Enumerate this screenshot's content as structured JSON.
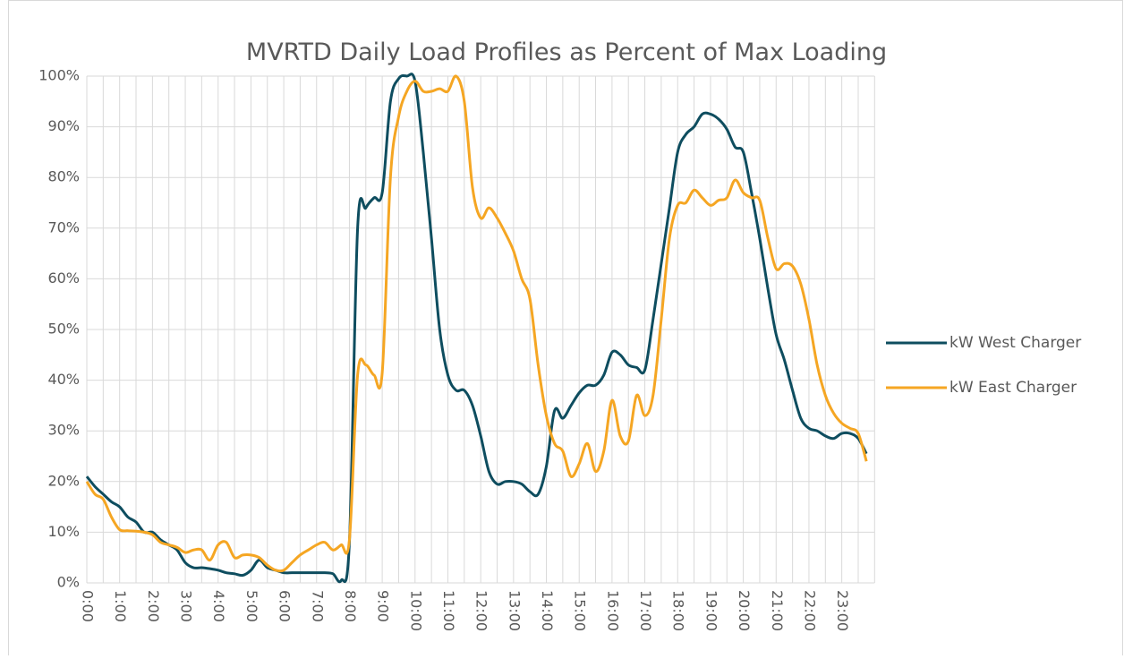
{
  "chart_data": {
    "type": "line",
    "title": "MVRTD Daily Load Profiles as Percent of Max Loading",
    "categories": [
      "0:00",
      null,
      null,
      null,
      "1:00",
      null,
      null,
      null,
      "2:00",
      null,
      null,
      null,
      "3:00",
      null,
      null,
      null,
      "4:00",
      null,
      null,
      null,
      "5:00",
      null,
      null,
      null,
      "6:00",
      null,
      null,
      null,
      "7:00",
      null,
      null,
      null,
      "8:00",
      null,
      null,
      null,
      "9:00",
      null,
      null,
      null,
      "10:00",
      null,
      null,
      null,
      "11:00",
      null,
      null,
      null,
      "12:00",
      null,
      null,
      null,
      "13:00",
      null,
      null,
      null,
      "14:00",
      null,
      null,
      null,
      "15:00",
      null,
      null,
      null,
      "16:00",
      null,
      null,
      null,
      "17:00",
      null,
      null,
      null,
      "18:00",
      null,
      null,
      null,
      "19:00",
      null,
      null,
      null,
      "20:00",
      null,
      null,
      null,
      "21:00",
      null,
      null,
      null,
      "22:00",
      null,
      null,
      null,
      "23:00",
      null,
      null,
      null
    ],
    "series": [
      {
        "name": "kW West Charger",
        "color": "#0e4d5f",
        "values": [
          21,
          19,
          17.5,
          16,
          15,
          13,
          12,
          10,
          10,
          8.5,
          7.5,
          6.5,
          4,
          3,
          3,
          2.8,
          2.5,
          2,
          1.8,
          1.5,
          2.5,
          4.5,
          3,
          2.5,
          2,
          2,
          2,
          2,
          2,
          2,
          1.8,
          0.5,
          8,
          70,
          74,
          76,
          77,
          95,
          99.5,
          100,
          99,
          85,
          68,
          50,
          41,
          38,
          38,
          35,
          29,
          22,
          19.5,
          20,
          20,
          19.5,
          18,
          17.5,
          23,
          34,
          32.5,
          35,
          37.5,
          39,
          39,
          41,
          45.5,
          45,
          43,
          42.5,
          42,
          52,
          63,
          74,
          85,
          88.5,
          90,
          92.5,
          92.5,
          91.5,
          89.5,
          86,
          85,
          77,
          68,
          58,
          49,
          44,
          38,
          32.5,
          30.5,
          30,
          29,
          28.5,
          29.5,
          29.5,
          28.5,
          25.5
        ]
      },
      {
        "name": "kW East Charger",
        "color": "#f5a623",
        "values": [
          20,
          17.5,
          16.5,
          13,
          10.5,
          10.3,
          10.2,
          10,
          9.5,
          8,
          7.5,
          7,
          6,
          6.5,
          6.5,
          4.5,
          7.5,
          8,
          5,
          5.5,
          5.5,
          5,
          3.5,
          2.5,
          2.5,
          4,
          5.5,
          6.5,
          7.5,
          8,
          6.5,
          7.5,
          8.5,
          41,
          43,
          41,
          41.5,
          80,
          92,
          97,
          99,
          97,
          97,
          97.5,
          97,
          100,
          95,
          78,
          72,
          74,
          72,
          69,
          65.5,
          60,
          56,
          43,
          33,
          27.5,
          26,
          21,
          23.5,
          27.5,
          22,
          26,
          36,
          29,
          28,
          37,
          33,
          37,
          52,
          68,
          74.5,
          75,
          77.5,
          76,
          74.5,
          75.5,
          76,
          79.5,
          77,
          76,
          75.5,
          68,
          62,
          63,
          62.5,
          59,
          52,
          43,
          37,
          33.5,
          31.5,
          30.5,
          29.5,
          24
        ]
      }
    ],
    "ylim": [
      0,
      100
    ],
    "yticks": [
      {
        "value": 0,
        "label": "0%"
      },
      {
        "value": 10,
        "label": "10%"
      },
      {
        "value": 20,
        "label": "20%"
      },
      {
        "value": 30,
        "label": "30%"
      },
      {
        "value": 40,
        "label": "40%"
      },
      {
        "value": 50,
        "label": "50%"
      },
      {
        "value": 60,
        "label": "60%"
      },
      {
        "value": 70,
        "label": "70%"
      },
      {
        "value": 80,
        "label": "80%"
      },
      {
        "value": 90,
        "label": "90%"
      },
      {
        "value": 100,
        "label": "100%"
      }
    ],
    "grid": true,
    "legend": "right"
  }
}
